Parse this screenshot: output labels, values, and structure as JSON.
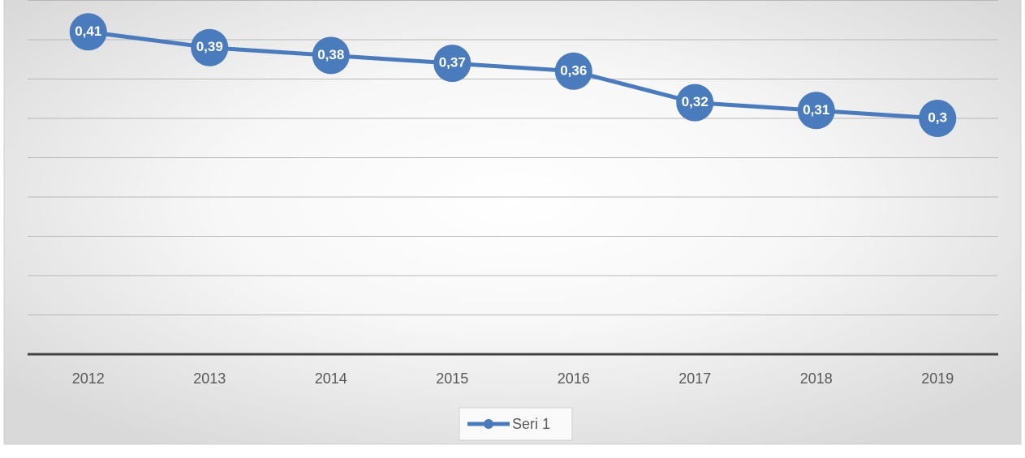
{
  "chart_data": {
    "type": "line",
    "categories": [
      "2012",
      "2013",
      "2014",
      "2015",
      "2016",
      "2017",
      "2018",
      "2019"
    ],
    "series": [
      {
        "name": "Seri 1",
        "color": "#4a7bbd",
        "values": [
          0.41,
          0.39,
          0.38,
          0.37,
          0.36,
          0.32,
          0.31,
          0.3
        ],
        "value_labels": [
          "0,41",
          "0,39",
          "0,38",
          "0,37",
          "0,36",
          "0,32",
          "0,31",
          "0,3"
        ]
      }
    ],
    "ylim": [
      0,
      0.45
    ],
    "yticks": [
      0,
      0.05,
      0.1,
      0.15,
      0.2,
      0.25,
      0.3,
      0.35,
      0.4,
      0.45
    ],
    "grid": true,
    "legend": "bottom"
  }
}
